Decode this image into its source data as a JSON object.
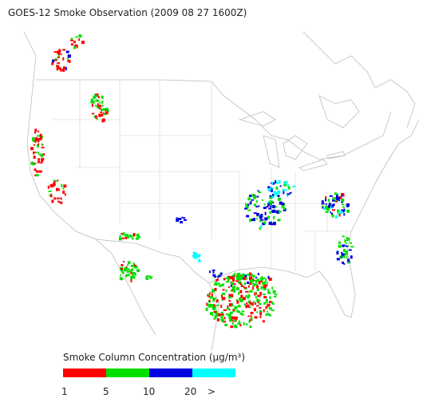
{
  "title": "GOES-12 Smoke Observation (2009 08 27  1600Z)",
  "legend": {
    "title": "Smoke Column Concentration (μg/m³)",
    "colors": [
      "#ff0000",
      "#00e000",
      "#0000e0",
      "#00ffff"
    ],
    "labels": [
      "1",
      "5",
      "10",
      "20",
      ">"
    ]
  }
}
